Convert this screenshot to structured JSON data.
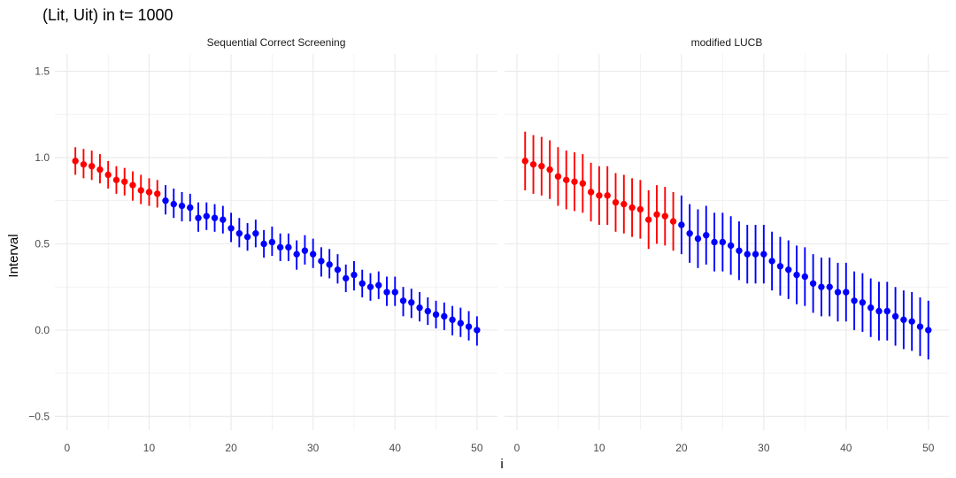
{
  "chart_data": {
    "type": "scatter",
    "title": "(Lit, Uit) in t= 1000",
    "xlabel": "i",
    "ylabel": "Interval",
    "xlim": [
      -1.5,
      52.5
    ],
    "ylim": [
      -0.58,
      1.6
    ],
    "x_ticks": [
      0,
      10,
      20,
      30,
      40,
      50
    ],
    "y_ticks": [
      -0.5,
      0.0,
      0.5,
      1.0,
      1.5
    ],
    "y_tick_labels": [
      "−0.5",
      "0.0",
      "0.5",
      "1.0",
      "1.5"
    ],
    "grid": true,
    "colors": {
      "selected": "#ff0000",
      "other": "#0000ff",
      "grid": "#ebebeb"
    },
    "panels": [
      {
        "name": "Sequential Correct Screening",
        "points": [
          {
            "x": 1,
            "y": 0.98,
            "lo": 0.9,
            "hi": 1.06,
            "group": "red"
          },
          {
            "x": 2,
            "y": 0.96,
            "lo": 0.88,
            "hi": 1.05,
            "group": "red"
          },
          {
            "x": 3,
            "y": 0.95,
            "lo": 0.87,
            "hi": 1.04,
            "group": "red"
          },
          {
            "x": 4,
            "y": 0.93,
            "lo": 0.85,
            "hi": 1.02,
            "group": "red"
          },
          {
            "x": 5,
            "y": 0.9,
            "lo": 0.82,
            "hi": 0.98,
            "group": "red"
          },
          {
            "x": 6,
            "y": 0.87,
            "lo": 0.79,
            "hi": 0.95,
            "group": "red"
          },
          {
            "x": 7,
            "y": 0.86,
            "lo": 0.78,
            "hi": 0.94,
            "group": "red"
          },
          {
            "x": 8,
            "y": 0.84,
            "lo": 0.75,
            "hi": 0.92,
            "group": "red"
          },
          {
            "x": 9,
            "y": 0.81,
            "lo": 0.73,
            "hi": 0.9,
            "group": "red"
          },
          {
            "x": 10,
            "y": 0.8,
            "lo": 0.72,
            "hi": 0.88,
            "group": "red"
          },
          {
            "x": 11,
            "y": 0.79,
            "lo": 0.71,
            "hi": 0.87,
            "group": "red"
          },
          {
            "x": 12,
            "y": 0.75,
            "lo": 0.67,
            "hi": 0.84,
            "group": "blue"
          },
          {
            "x": 13,
            "y": 0.73,
            "lo": 0.65,
            "hi": 0.82,
            "group": "blue"
          },
          {
            "x": 14,
            "y": 0.72,
            "lo": 0.63,
            "hi": 0.8,
            "group": "blue"
          },
          {
            "x": 15,
            "y": 0.71,
            "lo": 0.63,
            "hi": 0.79,
            "group": "blue"
          },
          {
            "x": 16,
            "y": 0.65,
            "lo": 0.57,
            "hi": 0.74,
            "group": "blue"
          },
          {
            "x": 17,
            "y": 0.66,
            "lo": 0.58,
            "hi": 0.74,
            "group": "blue"
          },
          {
            "x": 18,
            "y": 0.65,
            "lo": 0.57,
            "hi": 0.73,
            "group": "blue"
          },
          {
            "x": 19,
            "y": 0.64,
            "lo": 0.56,
            "hi": 0.72,
            "group": "blue"
          },
          {
            "x": 20,
            "y": 0.59,
            "lo": 0.51,
            "hi": 0.68,
            "group": "blue"
          },
          {
            "x": 21,
            "y": 0.56,
            "lo": 0.48,
            "hi": 0.65,
            "group": "blue"
          },
          {
            "x": 22,
            "y": 0.54,
            "lo": 0.46,
            "hi": 0.62,
            "group": "blue"
          },
          {
            "x": 23,
            "y": 0.56,
            "lo": 0.48,
            "hi": 0.64,
            "group": "blue"
          },
          {
            "x": 24,
            "y": 0.5,
            "lo": 0.42,
            "hi": 0.58,
            "group": "blue"
          },
          {
            "x": 25,
            "y": 0.51,
            "lo": 0.43,
            "hi": 0.6,
            "group": "blue"
          },
          {
            "x": 26,
            "y": 0.48,
            "lo": 0.4,
            "hi": 0.56,
            "group": "blue"
          },
          {
            "x": 27,
            "y": 0.48,
            "lo": 0.4,
            "hi": 0.56,
            "group": "blue"
          },
          {
            "x": 28,
            "y": 0.44,
            "lo": 0.35,
            "hi": 0.52,
            "group": "blue"
          },
          {
            "x": 29,
            "y": 0.46,
            "lo": 0.38,
            "hi": 0.55,
            "group": "blue"
          },
          {
            "x": 30,
            "y": 0.44,
            "lo": 0.36,
            "hi": 0.53,
            "group": "blue"
          },
          {
            "x": 31,
            "y": 0.4,
            "lo": 0.31,
            "hi": 0.48,
            "group": "blue"
          },
          {
            "x": 32,
            "y": 0.38,
            "lo": 0.3,
            "hi": 0.47,
            "group": "blue"
          },
          {
            "x": 33,
            "y": 0.35,
            "lo": 0.27,
            "hi": 0.44,
            "group": "blue"
          },
          {
            "x": 34,
            "y": 0.3,
            "lo": 0.22,
            "hi": 0.38,
            "group": "blue"
          },
          {
            "x": 35,
            "y": 0.32,
            "lo": 0.23,
            "hi": 0.4,
            "group": "blue"
          },
          {
            "x": 36,
            "y": 0.27,
            "lo": 0.19,
            "hi": 0.35,
            "group": "blue"
          },
          {
            "x": 37,
            "y": 0.25,
            "lo": 0.17,
            "hi": 0.33,
            "group": "blue"
          },
          {
            "x": 38,
            "y": 0.26,
            "lo": 0.18,
            "hi": 0.34,
            "group": "blue"
          },
          {
            "x": 39,
            "y": 0.22,
            "lo": 0.14,
            "hi": 0.31,
            "group": "blue"
          },
          {
            "x": 40,
            "y": 0.22,
            "lo": 0.14,
            "hi": 0.31,
            "group": "blue"
          },
          {
            "x": 41,
            "y": 0.17,
            "lo": 0.08,
            "hi": 0.25,
            "group": "blue"
          },
          {
            "x": 42,
            "y": 0.16,
            "lo": 0.07,
            "hi": 0.24,
            "group": "blue"
          },
          {
            "x": 43,
            "y": 0.13,
            "lo": 0.05,
            "hi": 0.22,
            "group": "blue"
          },
          {
            "x": 44,
            "y": 0.11,
            "lo": 0.03,
            "hi": 0.19,
            "group": "blue"
          },
          {
            "x": 45,
            "y": 0.09,
            "lo": 0.01,
            "hi": 0.17,
            "group": "blue"
          },
          {
            "x": 46,
            "y": 0.08,
            "lo": 0.0,
            "hi": 0.16,
            "group": "blue"
          },
          {
            "x": 47,
            "y": 0.06,
            "lo": -0.03,
            "hi": 0.14,
            "group": "blue"
          },
          {
            "x": 48,
            "y": 0.04,
            "lo": -0.04,
            "hi": 0.13,
            "group": "blue"
          },
          {
            "x": 49,
            "y": 0.02,
            "lo": -0.06,
            "hi": 0.11,
            "group": "blue"
          },
          {
            "x": 50,
            "y": 0.0,
            "lo": -0.09,
            "hi": 0.08,
            "group": "blue"
          }
        ]
      },
      {
        "name": "modified LUCB",
        "points": [
          {
            "x": 1,
            "y": 0.98,
            "lo": 0.81,
            "hi": 1.15,
            "group": "red"
          },
          {
            "x": 2,
            "y": 0.96,
            "lo": 0.79,
            "hi": 1.13,
            "group": "red"
          },
          {
            "x": 3,
            "y": 0.95,
            "lo": 0.78,
            "hi": 1.12,
            "group": "red"
          },
          {
            "x": 4,
            "y": 0.93,
            "lo": 0.76,
            "hi": 1.1,
            "group": "red"
          },
          {
            "x": 5,
            "y": 0.89,
            "lo": 0.72,
            "hi": 1.06,
            "group": "red"
          },
          {
            "x": 6,
            "y": 0.87,
            "lo": 0.7,
            "hi": 1.04,
            "group": "red"
          },
          {
            "x": 7,
            "y": 0.86,
            "lo": 0.69,
            "hi": 1.03,
            "group": "red"
          },
          {
            "x": 8,
            "y": 0.85,
            "lo": 0.68,
            "hi": 1.02,
            "group": "red"
          },
          {
            "x": 9,
            "y": 0.8,
            "lo": 0.63,
            "hi": 0.97,
            "group": "red"
          },
          {
            "x": 10,
            "y": 0.78,
            "lo": 0.61,
            "hi": 0.95,
            "group": "red"
          },
          {
            "x": 11,
            "y": 0.78,
            "lo": 0.61,
            "hi": 0.95,
            "group": "red"
          },
          {
            "x": 12,
            "y": 0.74,
            "lo": 0.57,
            "hi": 0.91,
            "group": "red"
          },
          {
            "x": 13,
            "y": 0.73,
            "lo": 0.56,
            "hi": 0.9,
            "group": "red"
          },
          {
            "x": 14,
            "y": 0.71,
            "lo": 0.54,
            "hi": 0.88,
            "group": "red"
          },
          {
            "x": 15,
            "y": 0.7,
            "lo": 0.53,
            "hi": 0.87,
            "group": "red"
          },
          {
            "x": 16,
            "y": 0.64,
            "lo": 0.47,
            "hi": 0.81,
            "group": "red"
          },
          {
            "x": 17,
            "y": 0.67,
            "lo": 0.5,
            "hi": 0.84,
            "group": "red"
          },
          {
            "x": 18,
            "y": 0.66,
            "lo": 0.49,
            "hi": 0.83,
            "group": "red"
          },
          {
            "x": 19,
            "y": 0.63,
            "lo": 0.46,
            "hi": 0.8,
            "group": "red"
          },
          {
            "x": 20,
            "y": 0.61,
            "lo": 0.44,
            "hi": 0.78,
            "group": "blue"
          },
          {
            "x": 21,
            "y": 0.56,
            "lo": 0.39,
            "hi": 0.73,
            "group": "blue"
          },
          {
            "x": 22,
            "y": 0.53,
            "lo": 0.36,
            "hi": 0.7,
            "group": "blue"
          },
          {
            "x": 23,
            "y": 0.55,
            "lo": 0.38,
            "hi": 0.72,
            "group": "blue"
          },
          {
            "x": 24,
            "y": 0.51,
            "lo": 0.34,
            "hi": 0.68,
            "group": "blue"
          },
          {
            "x": 25,
            "y": 0.51,
            "lo": 0.34,
            "hi": 0.68,
            "group": "blue"
          },
          {
            "x": 26,
            "y": 0.49,
            "lo": 0.32,
            "hi": 0.66,
            "group": "blue"
          },
          {
            "x": 27,
            "y": 0.46,
            "lo": 0.29,
            "hi": 0.63,
            "group": "blue"
          },
          {
            "x": 28,
            "y": 0.44,
            "lo": 0.27,
            "hi": 0.61,
            "group": "blue"
          },
          {
            "x": 29,
            "y": 0.44,
            "lo": 0.27,
            "hi": 0.61,
            "group": "blue"
          },
          {
            "x": 30,
            "y": 0.44,
            "lo": 0.27,
            "hi": 0.61,
            "group": "blue"
          },
          {
            "x": 31,
            "y": 0.4,
            "lo": 0.23,
            "hi": 0.57,
            "group": "blue"
          },
          {
            "x": 32,
            "y": 0.37,
            "lo": 0.2,
            "hi": 0.54,
            "group": "blue"
          },
          {
            "x": 33,
            "y": 0.35,
            "lo": 0.18,
            "hi": 0.52,
            "group": "blue"
          },
          {
            "x": 34,
            "y": 0.32,
            "lo": 0.15,
            "hi": 0.49,
            "group": "blue"
          },
          {
            "x": 35,
            "y": 0.31,
            "lo": 0.14,
            "hi": 0.48,
            "group": "blue"
          },
          {
            "x": 36,
            "y": 0.27,
            "lo": 0.1,
            "hi": 0.44,
            "group": "blue"
          },
          {
            "x": 37,
            "y": 0.25,
            "lo": 0.08,
            "hi": 0.42,
            "group": "blue"
          },
          {
            "x": 38,
            "y": 0.25,
            "lo": 0.08,
            "hi": 0.42,
            "group": "blue"
          },
          {
            "x": 39,
            "y": 0.22,
            "lo": 0.05,
            "hi": 0.39,
            "group": "blue"
          },
          {
            "x": 40,
            "y": 0.22,
            "lo": 0.05,
            "hi": 0.39,
            "group": "blue"
          },
          {
            "x": 41,
            "y": 0.17,
            "lo": 0.0,
            "hi": 0.34,
            "group": "blue"
          },
          {
            "x": 42,
            "y": 0.16,
            "lo": -0.01,
            "hi": 0.33,
            "group": "blue"
          },
          {
            "x": 43,
            "y": 0.13,
            "lo": -0.04,
            "hi": 0.3,
            "group": "blue"
          },
          {
            "x": 44,
            "y": 0.11,
            "lo": -0.06,
            "hi": 0.28,
            "group": "blue"
          },
          {
            "x": 45,
            "y": 0.11,
            "lo": -0.06,
            "hi": 0.28,
            "group": "blue"
          },
          {
            "x": 46,
            "y": 0.08,
            "lo": -0.09,
            "hi": 0.25,
            "group": "blue"
          },
          {
            "x": 47,
            "y": 0.06,
            "lo": -0.11,
            "hi": 0.23,
            "group": "blue"
          },
          {
            "x": 48,
            "y": 0.05,
            "lo": -0.12,
            "hi": 0.22,
            "group": "blue"
          },
          {
            "x": 49,
            "y": 0.02,
            "lo": -0.15,
            "hi": 0.19,
            "group": "blue"
          },
          {
            "x": 50,
            "y": 0.0,
            "lo": -0.17,
            "hi": 0.17,
            "group": "blue"
          }
        ]
      }
    ]
  }
}
